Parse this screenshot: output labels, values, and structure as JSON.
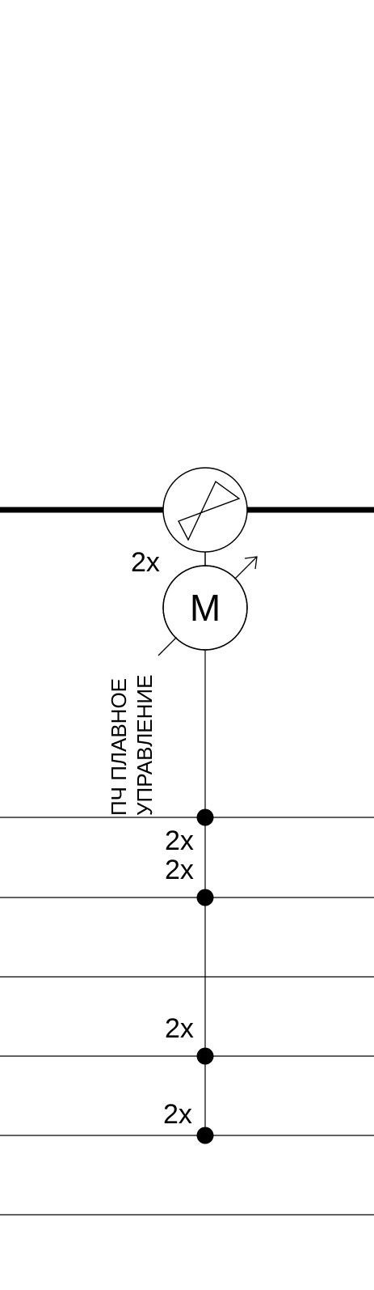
{
  "diagram": {
    "colors": {
      "background": "#ffffff",
      "line": "#000000"
    },
    "damper": {
      "symbol": "damper-valve"
    },
    "motor": {
      "letter": "M",
      "multiplier": "2x"
    },
    "control_note": {
      "line1": "ПЧ ПЛАВНОЕ",
      "line2": "УПРАВЛЕНИЕ"
    },
    "bus_multipliers": [
      "2x",
      "2x",
      "2x",
      "2x"
    ]
  }
}
